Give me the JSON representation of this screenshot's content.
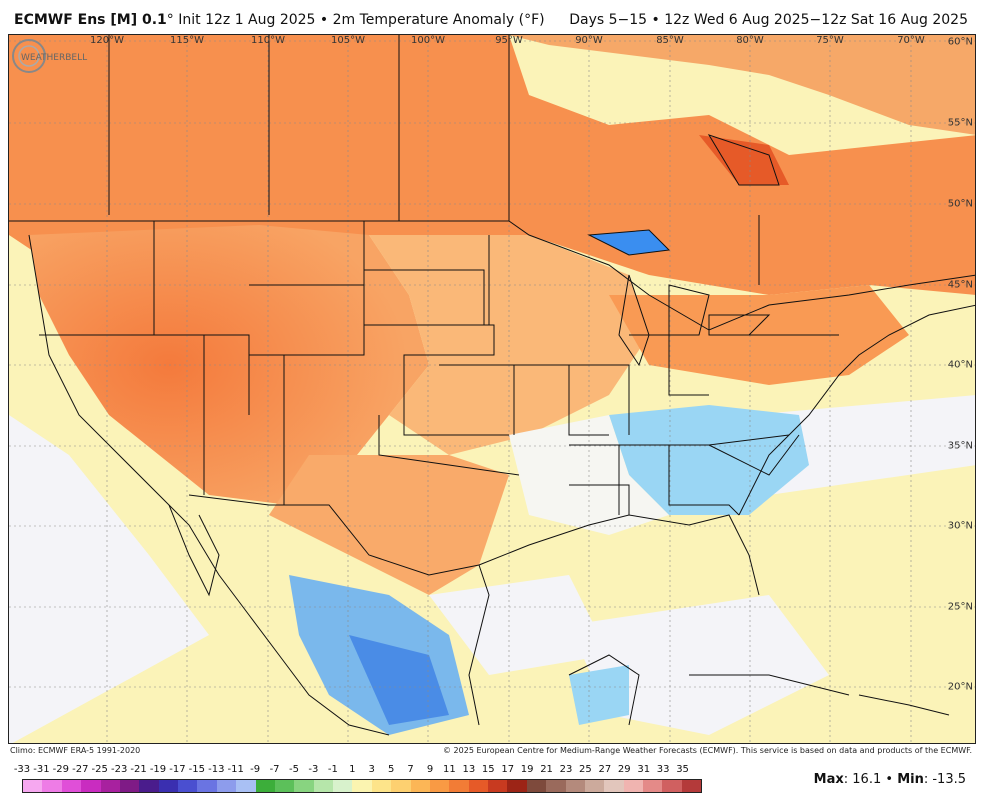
{
  "header": {
    "model": "ECMWF Ens [M] 0.1",
    "degree": "°",
    "init": "Init 12z 1 Aug 2025",
    "sep": "•",
    "field": "2m Temperature Anomaly (°F)",
    "range": "Days 5−15 • 12z Wed 6 Aug 2025−12z Sat 16 Aug 2025"
  },
  "map": {
    "longitudes": [
      "120°W",
      "115°W",
      "110°W",
      "105°W",
      "100°W",
      "95°W",
      "90°W",
      "85°W",
      "80°W",
      "75°W",
      "70°W"
    ],
    "latitudes": [
      "60°N",
      "55°N",
      "50°N",
      "45°N",
      "40°N",
      "35°N",
      "30°N",
      "25°N",
      "20°N"
    ]
  },
  "logo": {
    "text": "WEATHERBELL"
  },
  "footer": {
    "climo": "Climo: ECMWF ERA-5 1991-2020",
    "copyright": "© 2025 European Centre for Medium-Range Weather Forecasts (ECMWF). This service is based on data and products of the ECMWF."
  },
  "colorbar": {
    "labels": [
      "-33",
      "-31",
      "-29",
      "-27",
      "-25",
      "-23",
      "-21",
      "-19",
      "-17",
      "-15",
      "-13",
      "-11",
      "-9",
      "-7",
      "-5",
      "-3",
      "-1",
      "1",
      "3",
      "5",
      "7",
      "9",
      "11",
      "13",
      "15",
      "17",
      "19",
      "21",
      "23",
      "25",
      "27",
      "29",
      "31",
      "33",
      "35"
    ],
    "colors": [
      "#f6a8f0",
      "#ee7ce6",
      "#e04fd8",
      "#c92cc0",
      "#a8219f",
      "#7f1b86",
      "#4a1c8c",
      "#3a2fb0",
      "#4a4fd0",
      "#6a74e2",
      "#8d9cec",
      "#a9c0f4",
      "#3cae3a",
      "#5cc05a",
      "#88d480",
      "#b6e6aa",
      "#d8f2cc",
      "#fbf4b0",
      "#fde48a",
      "#fdd070",
      "#fcb656",
      "#f99a44",
      "#f27c36",
      "#e65a28",
      "#c83a20",
      "#9c2416",
      "#7e4a3c",
      "#9a6a5c",
      "#b48a7c",
      "#ccaa9c",
      "#e2c6bc",
      "#f0b4b0",
      "#e48a88",
      "#d06060",
      "#b43a3a"
    ]
  },
  "stats": {
    "max_label": "Max",
    "max": "16.1",
    "sep": "•",
    "min_label": "Min",
    "min": "-13.5"
  },
  "colors": {
    "warm": "#f58a4a",
    "cool": "#8fd0f4",
    "neutral": "#fbf4b0"
  }
}
